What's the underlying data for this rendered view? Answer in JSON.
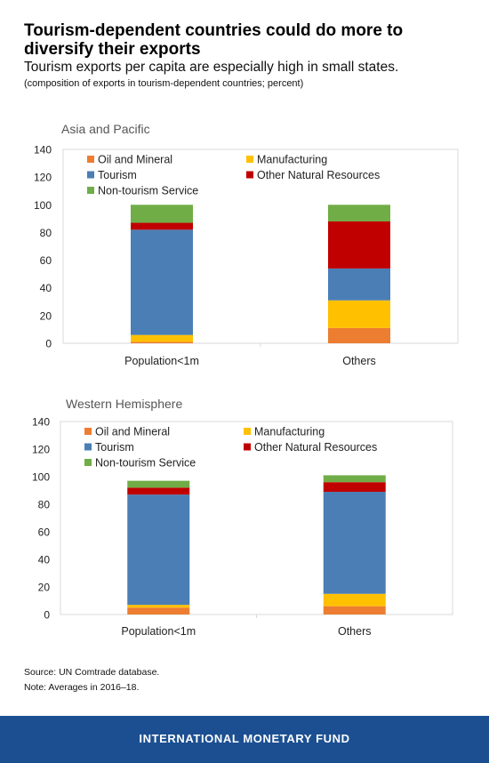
{
  "header": {
    "title": "Tourism-dependent countries could do more to diversify their exports",
    "subtitle": "Tourism exports per capita are especially high in small states.",
    "note": "(composition of exports in tourism-dependent countries; percent)"
  },
  "colors": {
    "Oil and Mineral": "#ed7d31",
    "Manufacturing": "#ffc000",
    "Tourism": "#4a7eb5",
    "Other Natural Resources": "#c00000",
    "Non-tourism Service": "#70ad47"
  },
  "chart_data": [
    {
      "type": "bar",
      "stacked": true,
      "title": "Asia and Pacific",
      "categories": [
        "Population<1m",
        "Others"
      ],
      "series": [
        {
          "name": "Oil and Mineral",
          "values": [
            1,
            11
          ]
        },
        {
          "name": "Manufacturing",
          "values": [
            5,
            20
          ]
        },
        {
          "name": "Tourism",
          "values": [
            76,
            23
          ]
        },
        {
          "name": "Other Natural Resources",
          "values": [
            5,
            34
          ]
        },
        {
          "name": "Non-tourism Service",
          "values": [
            13,
            12
          ]
        }
      ],
      "ylim": [
        0,
        140
      ],
      "yticks": [
        0,
        20,
        40,
        60,
        80,
        100,
        120,
        140
      ],
      "legend_position": "top-left, inside plot, two columns"
    },
    {
      "type": "bar",
      "stacked": true,
      "title": "Western Hemisphere",
      "categories": [
        "Population<1m",
        "Others"
      ],
      "series": [
        {
          "name": "Oil and Mineral",
          "values": [
            5,
            6
          ]
        },
        {
          "name": "Manufacturing",
          "values": [
            2,
            9
          ]
        },
        {
          "name": "Tourism",
          "values": [
            80,
            74
          ]
        },
        {
          "name": "Other Natural Resources",
          "values": [
            5,
            7
          ]
        },
        {
          "name": "Non-tourism Service",
          "values": [
            5,
            5
          ]
        }
      ],
      "ylim": [
        0,
        140
      ],
      "yticks": [
        0,
        20,
        40,
        60,
        80,
        100,
        120,
        140
      ],
      "legend_position": "top-left, inside plot, two columns"
    }
  ],
  "source": "Source: UN Comtrade database.",
  "note": "Note: Averages in 2016–18.",
  "footer": "INTERNATIONAL MONETARY FUND"
}
